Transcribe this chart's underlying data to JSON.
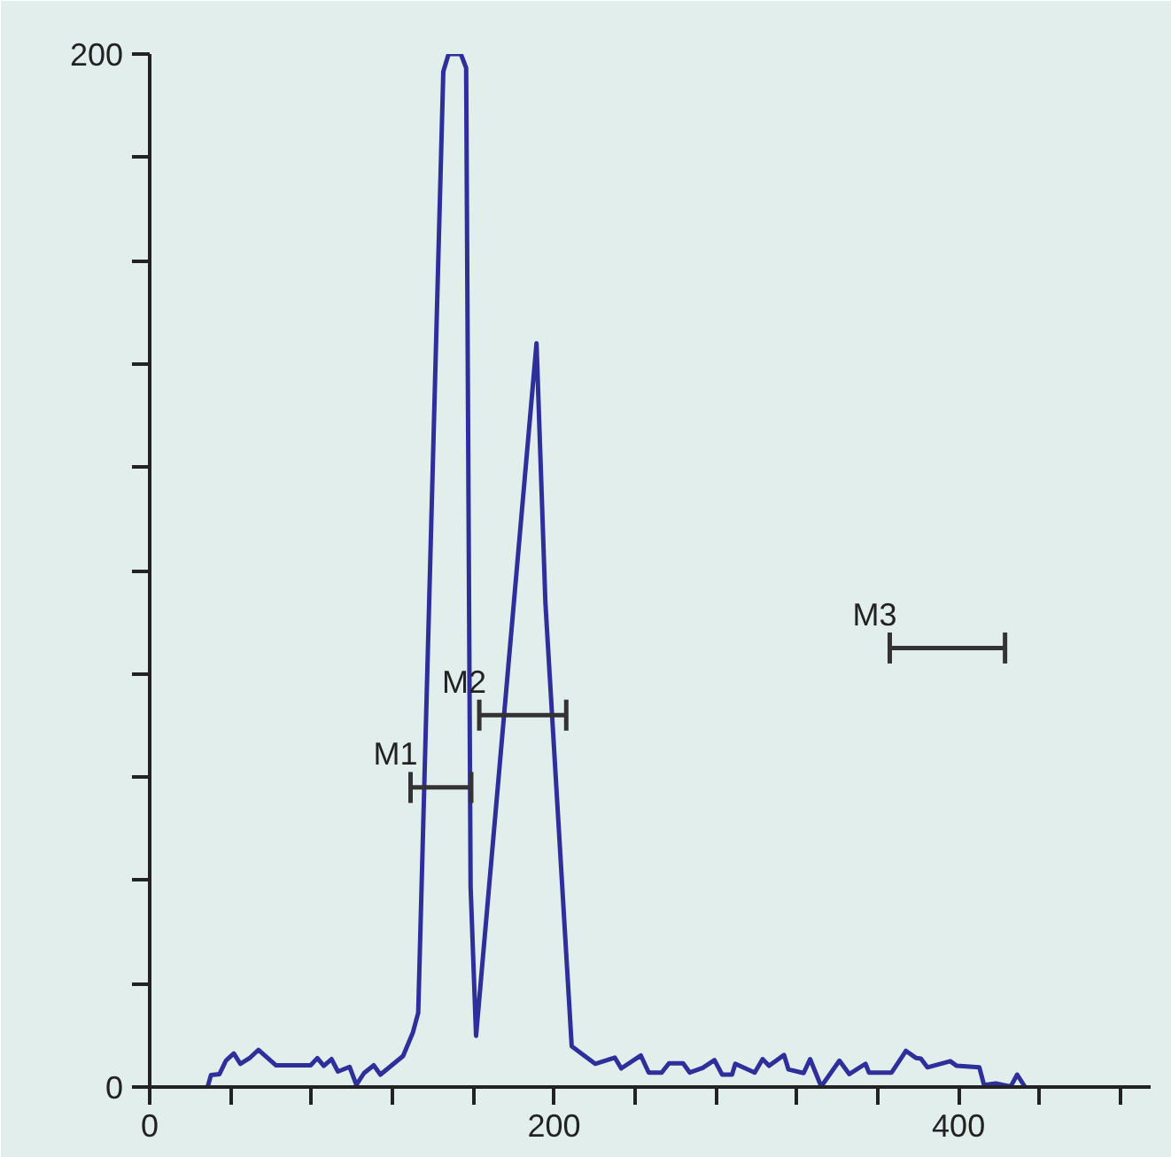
{
  "chart_data": {
    "type": "line",
    "grid": false,
    "marker": "none",
    "line_style": "solid",
    "xlim": [
      0,
      495
    ],
    "ylim": [
      0,
      200
    ],
    "xticks": [
      0,
      {
        "value": 40,
        "label": null
      },
      {
        "value": 80,
        "label": null
      },
      {
        "value": 120,
        "label": null
      },
      {
        "value": 160,
        "label": null
      },
      200,
      {
        "value": 240,
        "label": null
      },
      {
        "value": 280,
        "label": null
      },
      {
        "value": 320,
        "label": null
      },
      {
        "value": 360,
        "label": null
      },
      400,
      {
        "value": 440,
        "label": null
      },
      {
        "value": 480,
        "label": null
      }
    ],
    "yticks": [
      0,
      {
        "value": 20,
        "label": null
      },
      {
        "value": 40,
        "label": null
      },
      {
        "value": 60,
        "label": null
      },
      {
        "value": 80,
        "label": null
      },
      {
        "value": 100,
        "label": null
      },
      {
        "value": 120,
        "label": null
      },
      {
        "value": 140,
        "label": null
      },
      {
        "value": 160,
        "label": null
      },
      {
        "value": 180,
        "label": null
      },
      200
    ],
    "series": [
      {
        "color": "#2e2f9a",
        "x": [
          28.7,
          30.3,
          34.5,
          37.7,
          41.6,
          44.8,
          49.7,
          53.8,
          62.5,
          79.6,
          82.9,
          86.1,
          89.9,
          93.1,
          98.9,
          102.2,
          106,
          110.8,
          114.1,
          125.3,
          130.2,
          132.8,
          145.2,
          147.8,
          153.9,
          156.5,
          158.7,
          161.4,
          191.3,
          195.7,
          208.7,
          220.3,
          230,
          233.2,
          242.9,
          246.8,
          253.2,
          256.8,
          263.8,
          267.1,
          273.5,
          279.3,
          283.1,
          288,
          289.6,
          299.2,
          303.1,
          306.3,
          313.7,
          315.9,
          323.4,
          326.6,
          332.1,
          341.1,
          346,
          354,
          355.7,
          366.9,
          374,
          379.1,
          381.4,
          384.6,
          395.9,
          399.1,
          410.3,
          412.6,
          418.4,
          425.8,
          429,
          432.9
        ],
        "values": [
          0.1,
          2.3,
          2.5,
          5.1,
          6.5,
          4.5,
          5.7,
          7.2,
          4.2,
          4.2,
          5.6,
          4.1,
          5.4,
          3,
          3.9,
          0.4,
          2.7,
          4.2,
          2.4,
          6,
          10.6,
          14.4,
          196.6,
          200,
          200,
          197.3,
          38.8,
          9.9,
          144,
          93.7,
          7.9,
          4.5,
          5.7,
          3.6,
          6.1,
          2.8,
          2.8,
          4.6,
          4.6,
          2.8,
          3.7,
          5.2,
          2.4,
          2.4,
          4.5,
          2.8,
          5.4,
          4.1,
          6.2,
          3.4,
          2.7,
          5.4,
          0.1,
          5.1,
          2.5,
          4.5,
          2.8,
          2.8,
          7,
          5.6,
          5.5,
          3.8,
          5,
          4.1,
          3.8,
          0.4,
          0.7,
          0.1,
          2.4,
          0
        ]
      },
      {
        "name": "M1",
        "color": "#333333",
        "x": [
          129,
          159
        ],
        "values": [
          58,
          58
        ],
        "errors": [
          3,
          3
        ]
      },
      {
        "name": "M2",
        "color": "#333333",
        "x": [
          163,
          206
        ],
        "values": [
          72,
          72
        ],
        "errors": [
          3,
          3
        ]
      },
      {
        "name": "M3",
        "color": "#333333",
        "x": [
          366,
          423
        ],
        "values": [
          85,
          85
        ],
        "errors": [
          3,
          3
        ]
      }
    ]
  }
}
